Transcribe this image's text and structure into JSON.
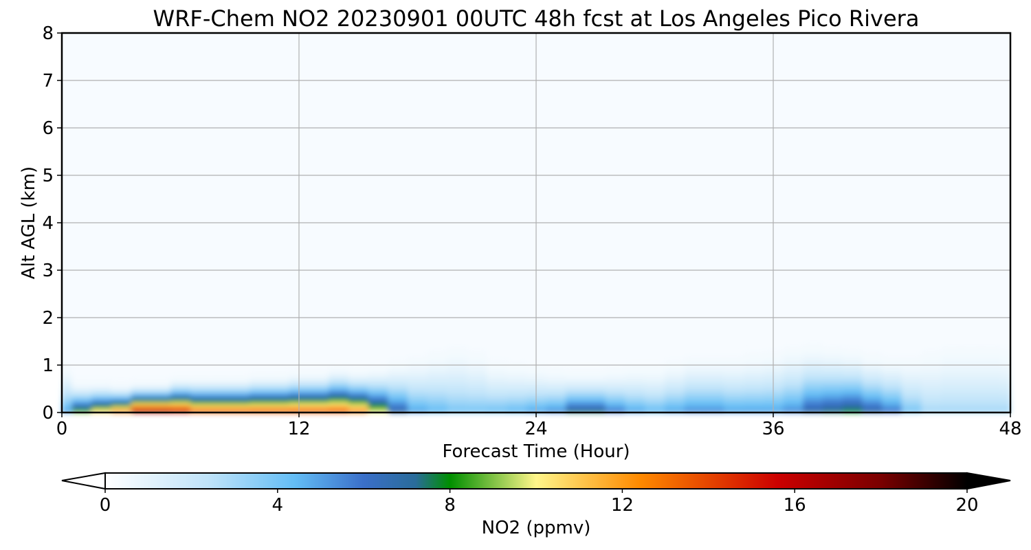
{
  "chart_data": {
    "type": "heatmap",
    "title": "WRF-Chem NO2  20230901 00UTC 48h fcst at Los Angeles Pico Rivera",
    "xlabel": "Forecast Time (Hour)",
    "ylabel": "Alt AGL (km)",
    "xlim": [
      0,
      48
    ],
    "ylim": [
      0,
      8
    ],
    "xticks": [
      0,
      12,
      24,
      36,
      48
    ],
    "yticks": [
      0,
      1,
      2,
      3,
      4,
      5,
      6,
      7,
      8
    ],
    "grid": true,
    "hours": [
      0,
      1,
      2,
      3,
      4,
      5,
      6,
      7,
      8,
      9,
      10,
      11,
      12,
      13,
      14,
      15,
      16,
      17,
      18,
      19,
      20,
      21,
      22,
      23,
      24,
      25,
      26,
      27,
      28,
      29,
      30,
      31,
      32,
      33,
      34,
      35,
      36,
      37,
      38,
      39,
      40,
      41,
      42,
      43,
      44,
      45,
      46,
      47,
      48
    ],
    "surface_no2_ppmv": [
      5,
      9,
      11,
      13,
      17,
      17,
      16,
      14,
      14,
      14,
      14,
      14,
      14,
      14,
      14,
      13,
      10,
      7,
      5,
      4.5,
      4,
      4,
      4.2,
      4.5,
      5,
      5.5,
      7.5,
      7.5,
      6,
      5,
      4.5,
      5,
      5.5,
      5.5,
      5,
      5,
      5,
      5.5,
      7,
      7.5,
      8,
      7,
      6,
      4,
      3,
      3,
      3,
      3,
      3
    ],
    "layer_top_km": [
      0.9,
      0.6,
      0.6,
      0.55,
      0.6,
      0.6,
      0.7,
      0.7,
      0.7,
      0.7,
      0.75,
      0.75,
      0.8,
      0.8,
      0.9,
      0.85,
      0.9,
      1.0,
      1.1,
      1.2,
      1.3,
      1.2,
      1.0,
      0.95,
      0.9,
      0.85,
      0.8,
      0.8,
      0.85,
      0.9,
      0.9,
      1.0,
      1.1,
      1.1,
      1.1,
      1.15,
      1.2,
      1.3,
      1.35,
      1.3,
      1.25,
      1.15,
      1.1,
      1.1,
      1.2,
      1.3,
      1.3,
      1.3,
      1.25
    ],
    "colorbar": {
      "label": "NO2  (ppmv)",
      "ticks": [
        0,
        4,
        8,
        12,
        16,
        20
      ],
      "range": [
        0,
        20
      ],
      "extend": "both",
      "colors": [
        "#ffffff",
        "#7cc9f5",
        "#3a6fc9",
        "#008f00",
        "#fff58a",
        "#ff8a00",
        "#cc0000",
        "#000000"
      ]
    }
  }
}
